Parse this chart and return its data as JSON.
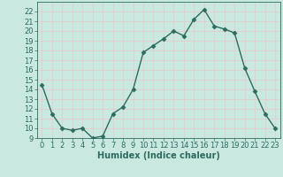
{
  "x": [
    0,
    1,
    2,
    3,
    4,
    5,
    6,
    7,
    8,
    9,
    10,
    11,
    12,
    13,
    14,
    15,
    16,
    17,
    18,
    19,
    20,
    21,
    22,
    23
  ],
  "y": [
    14.5,
    11.5,
    10.0,
    9.8,
    10.0,
    9.0,
    9.2,
    11.5,
    12.2,
    14.0,
    17.8,
    18.5,
    19.2,
    20.0,
    19.5,
    21.2,
    22.2,
    20.5,
    20.2,
    19.8,
    16.2,
    13.8,
    11.5,
    10.0
  ],
  "line_color": "#2e6b5e",
  "marker": "D",
  "markersize": 2.5,
  "bg_color": "#c8e8e0",
  "grid_color": "#e8c8c8",
  "xlabel": "Humidex (Indice chaleur)",
  "ylim": [
    9,
    23
  ],
  "xlim": [
    -0.5,
    23.5
  ],
  "yticks": [
    9,
    10,
    11,
    12,
    13,
    14,
    15,
    16,
    17,
    18,
    19,
    20,
    21,
    22
  ],
  "xticks": [
    0,
    1,
    2,
    3,
    4,
    5,
    6,
    7,
    8,
    9,
    10,
    11,
    12,
    13,
    14,
    15,
    16,
    17,
    18,
    19,
    20,
    21,
    22,
    23
  ],
  "axis_fontsize": 6,
  "label_fontsize": 7,
  "linewidth": 1.0
}
